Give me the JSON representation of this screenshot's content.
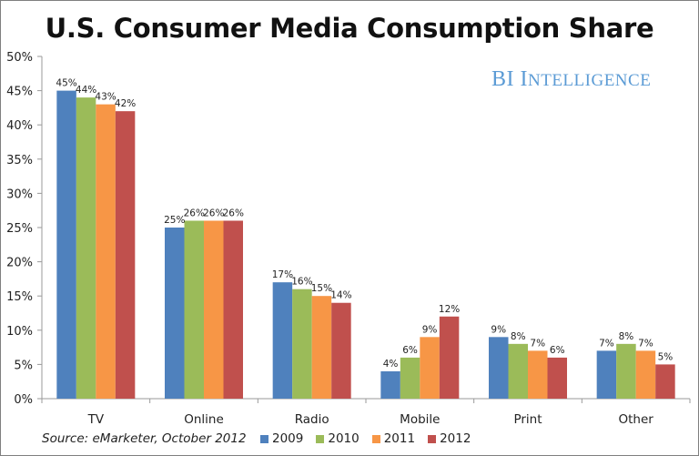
{
  "chart_data": {
    "type": "bar",
    "title": "U.S. Consumer Media Consumption Share",
    "categories": [
      "TV",
      "Online",
      "Radio",
      "Mobile",
      "Print",
      "Other"
    ],
    "series": [
      {
        "name": "2009",
        "color": "#4f81bd",
        "values": [
          45,
          25,
          17,
          4,
          9,
          7
        ]
      },
      {
        "name": "2010",
        "color": "#9bbb59",
        "values": [
          44,
          26,
          16,
          6,
          8,
          8
        ]
      },
      {
        "name": "2011",
        "color": "#f79646",
        "values": [
          43,
          26,
          15,
          9,
          7,
          7
        ]
      },
      {
        "name": "2012",
        "color": "#c0504d",
        "values": [
          42,
          26,
          14,
          12,
          6,
          5
        ]
      }
    ],
    "ylim": [
      0,
      50
    ],
    "yticks": [
      0,
      5,
      10,
      15,
      20,
      25,
      30,
      35,
      40,
      45,
      50
    ],
    "ytick_labels": [
      "0%",
      "5%",
      "10%",
      "15%",
      "20%",
      "25%",
      "30%",
      "35%",
      "40%",
      "45%",
      "50%"
    ],
    "xlabel": "",
    "ylabel": "",
    "value_suffix": "%",
    "grid": false,
    "legend_position": "bottom"
  },
  "branding": {
    "initial": "BI",
    "first_letter": "I",
    "rest": "NTELLIGENCE"
  },
  "source": "Source: eMarketer, October 2012"
}
